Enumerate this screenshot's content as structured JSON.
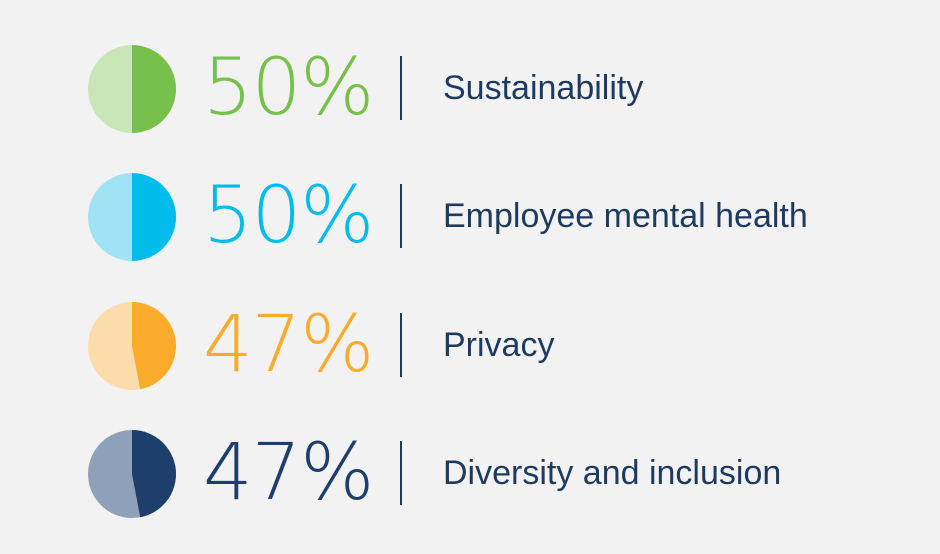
{
  "chart_data": {
    "type": "pie",
    "items": [
      {
        "value": 50,
        "label": "Sustainability",
        "value_text": "50%",
        "color": "#76c04b",
        "light": "#c8e6b7"
      },
      {
        "value": 50,
        "label": "Employee mental health",
        "value_text": "50%",
        "color": "#00bceb",
        "light": "#9fe3f5"
      },
      {
        "value": 47,
        "label": "Privacy",
        "value_text": "47%",
        "color": "#fbab2c",
        "light": "#fddcab"
      },
      {
        "value": 47,
        "label": "Diversity and inclusion",
        "value_text": "47%",
        "color": "#1e3f6b",
        "light": "#8fa1ba"
      }
    ]
  }
}
